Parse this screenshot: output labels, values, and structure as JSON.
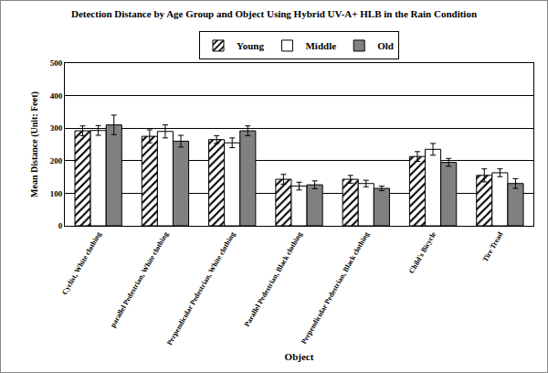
{
  "chart_data": {
    "type": "bar",
    "title": "Detection Distance by Age Group and Object Using Hybrid UV-A+ HLB in the Rain Condition",
    "x_label": "Object",
    "y_label": "Mean Distance (Unit: Feet)",
    "categories": [
      "Cyclist, White clothing",
      "parallel Pedestrian, White clothing",
      "Perpendicular Pedestrian, White clothing",
      "Parallel Pedestrian, Black clothing",
      "Perpendicular Pedestrian, Black clothing",
      "Child's Bicycle",
      "Tire Tread"
    ],
    "series": [
      {
        "name": "Young",
        "color": "#ffffff",
        "marker": "hatched",
        "values": [
          292,
          275,
          265,
          143,
          143,
          213,
          155
        ],
        "errors": [
          15,
          20,
          12,
          15,
          12,
          15,
          20
        ]
      },
      {
        "name": "Middle",
        "color": "#ffffff",
        "values": [
          293,
          290,
          255,
          122,
          130,
          235,
          163
        ],
        "errors": [
          15,
          20,
          15,
          12,
          10,
          18,
          12
        ]
      },
      {
        "name": "Old",
        "color": "#808080",
        "values": [
          310,
          260,
          292,
          126,
          115,
          195,
          130
        ],
        "errors": [
          30,
          18,
          15,
          12,
          7,
          12,
          15
        ]
      }
    ],
    "ylim": [
      0,
      500
    ],
    "yticks": [
      0,
      100,
      200,
      300,
      400,
      500
    ],
    "grid": true,
    "legend": "top"
  }
}
